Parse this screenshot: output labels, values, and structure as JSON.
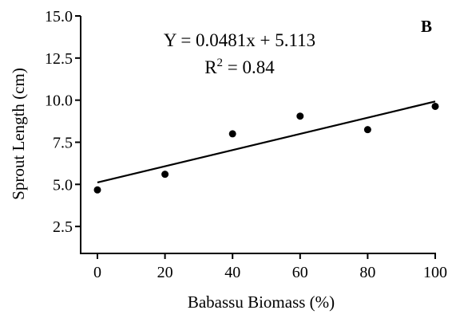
{
  "chart_data": {
    "type": "scatter",
    "panel_label": "B",
    "xlabel": "Babassu Biomass (%)",
    "ylabel": "Sprout Length  (cm)",
    "xlim": [
      0,
      100
    ],
    "ylim": [
      0,
      15
    ],
    "x_ticks": [
      "0",
      "20",
      "40",
      "60",
      "80",
      "100"
    ],
    "y_ticks": [
      "2.5",
      "5.0",
      "7.5",
      "10.0",
      "12.5",
      "15.0"
    ],
    "series": [
      {
        "x": [
          0,
          20,
          40,
          60,
          80,
          100
        ],
        "y": [
          4.67,
          5.6,
          8.0,
          9.05,
          8.25,
          9.63
        ]
      }
    ],
    "trendline": {
      "slope": 0.0481,
      "intercept": 5.113
    },
    "equation": "Y = 0.0481x + 5.113",
    "r2_label": "R",
    "r2_sup": "2",
    "r2_value": " = 0.84",
    "grid": false,
    "legend": "none"
  }
}
